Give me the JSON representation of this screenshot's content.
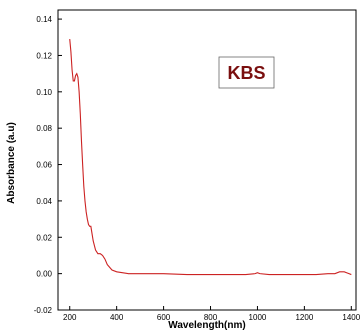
{
  "chart_data": {
    "type": "line",
    "title": "",
    "xlabel": "Wavelength(nm)",
    "ylabel": "Absorbance (a.u)",
    "xlim": [
      150,
      1420
    ],
    "ylim": [
      -0.02,
      0.145
    ],
    "x_ticks": [
      200,
      400,
      600,
      800,
      1000,
      1200,
      1400
    ],
    "y_ticks": [
      -0.02,
      0.0,
      0.02,
      0.04,
      0.06,
      0.08,
      0.1,
      0.12,
      0.14
    ],
    "x_tick_labels": [
      "200",
      "400",
      "600",
      "800",
      "1000",
      "1200",
      "1400"
    ],
    "y_tick_labels": [
      "-0.02",
      "0.00",
      "0.02",
      "0.04",
      "0.06",
      "0.08",
      "0.10",
      "0.12",
      "0.14"
    ],
    "grid": false,
    "series": [
      {
        "color": "#cc2222",
        "x": [
          200,
          205,
          210,
          215,
          220,
          225,
          230,
          235,
          240,
          245,
          250,
          255,
          260,
          265,
          270,
          275,
          280,
          285,
          290,
          295,
          300,
          310,
          320,
          330,
          340,
          350,
          360,
          380,
          400,
          450,
          500,
          600,
          700,
          800,
          900,
          950,
          990,
          1000,
          1010,
          1050,
          1100,
          1150,
          1200,
          1250,
          1300,
          1330,
          1350,
          1370,
          1380,
          1390,
          1400
        ],
        "y": [
          0.129,
          0.122,
          0.112,
          0.106,
          0.106,
          0.109,
          0.11,
          0.108,
          0.1,
          0.088,
          0.073,
          0.06,
          0.048,
          0.04,
          0.034,
          0.03,
          0.027,
          0.026,
          0.026,
          0.022,
          0.018,
          0.013,
          0.011,
          0.011,
          0.01,
          0.008,
          0.005,
          0.002,
          0.001,
          0.0,
          0.0,
          0.0,
          -0.0005,
          -0.0005,
          -0.0005,
          -0.0005,
          0.0,
          0.0005,
          0.0,
          -0.0005,
          -0.0005,
          -0.0005,
          -0.0005,
          -0.0005,
          0.0,
          0.0,
          0.001,
          0.001,
          0.0005,
          0.0,
          -0.0005
        ]
      }
    ],
    "annotation": {
      "text": "KBS",
      "color": "#7a0f0f",
      "border": "#666666"
    },
    "colors": {
      "line": "#cc2222",
      "axis": "#000000"
    }
  }
}
